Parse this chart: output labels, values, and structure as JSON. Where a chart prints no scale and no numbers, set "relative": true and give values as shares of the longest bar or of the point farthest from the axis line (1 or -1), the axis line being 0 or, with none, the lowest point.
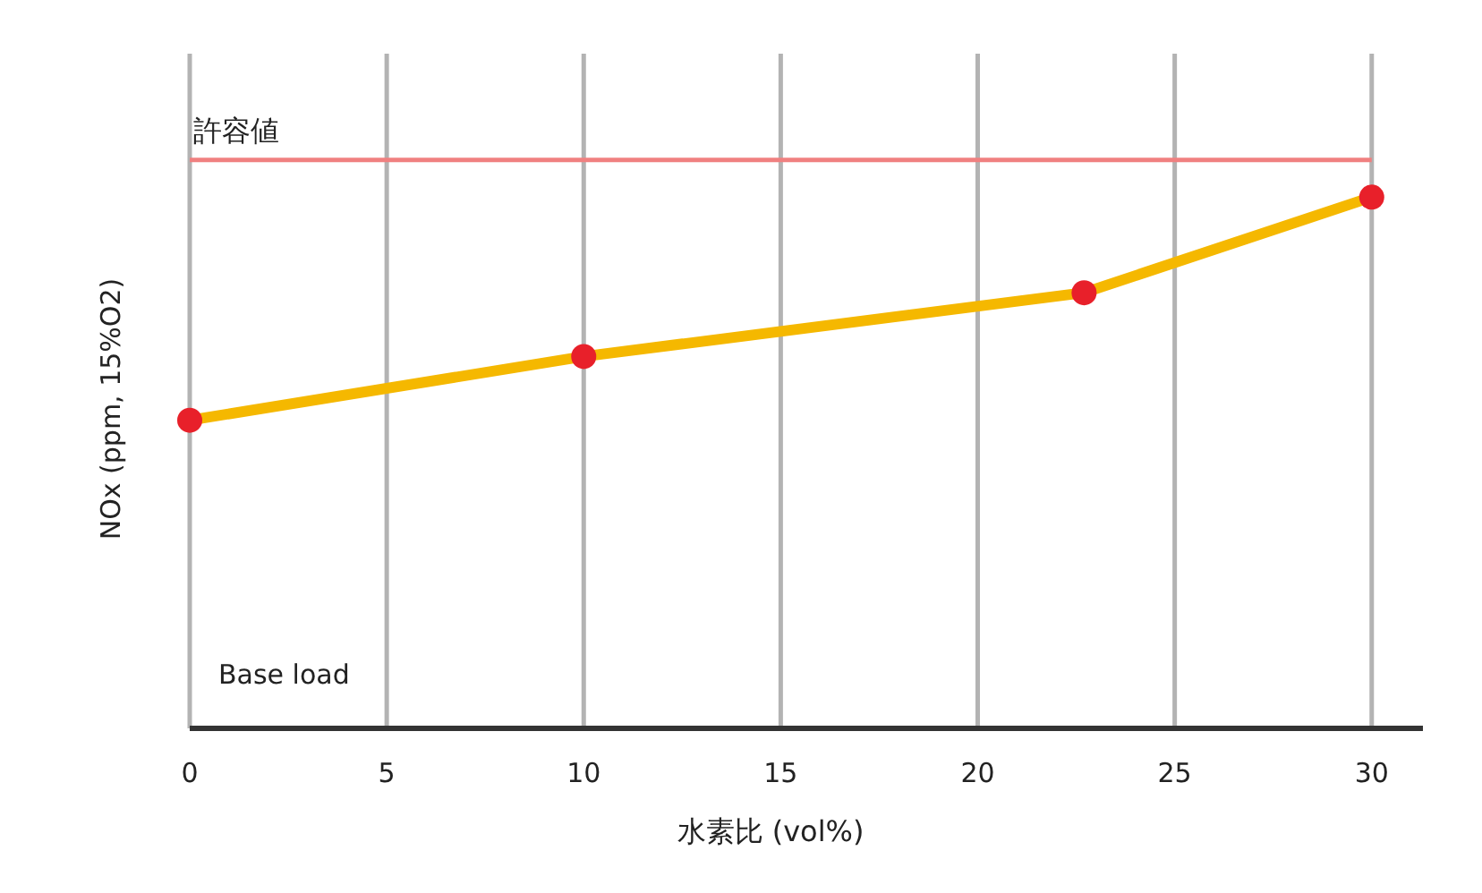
{
  "chart_data": {
    "type": "line",
    "relative": true,
    "xlabel": "水素比 (vol%)",
    "ylabel": "NOx (ppm, 15%O2)",
    "x": [
      0,
      10,
      22.7,
      30
    ],
    "series": [
      {
        "color": "#f5b800",
        "values": [
          0.58,
          0.7,
          0.82,
          1
        ]
      }
    ],
    "xlim": [
      0,
      31.3
    ],
    "xticks": [
      0,
      5,
      10,
      15,
      20,
      25,
      30
    ],
    "ref_lines": [
      {
        "axis": "y",
        "value": 1.07,
        "label": "許容値",
        "color": "#f08080"
      }
    ],
    "annotations": [
      "Base load"
    ],
    "grid": "x",
    "marker": "circle"
  }
}
